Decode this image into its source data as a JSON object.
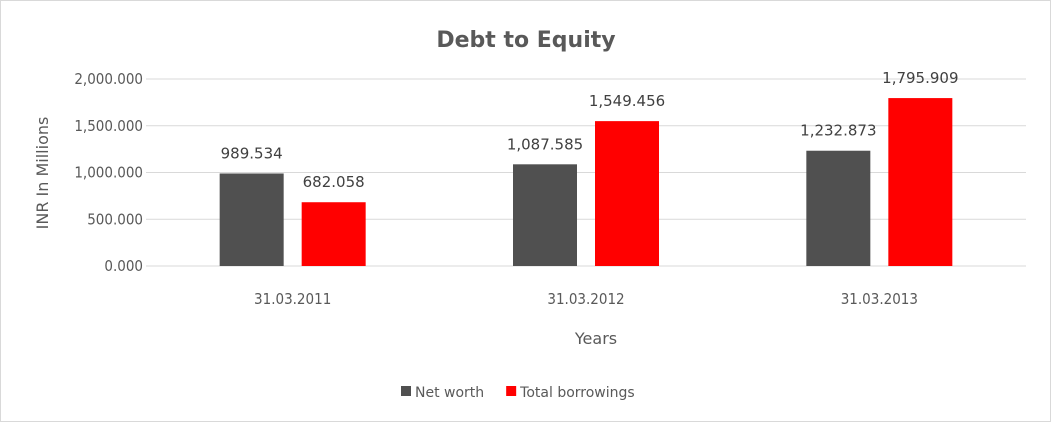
{
  "chart_data": {
    "type": "bar",
    "title": "Debt to Equity",
    "xlabel": "Years",
    "ylabel": "INR In Millions",
    "categories": [
      "31.03.2011",
      "31.03.2012",
      "31.03.2013"
    ],
    "series": [
      {
        "name": "Net worth",
        "color": "#505050",
        "values": [
          989.534,
          1087.585,
          1232.873
        ],
        "labels": [
          "989.534",
          "1,087.585",
          "1,232.873"
        ]
      },
      {
        "name": "Total borrowings",
        "color": "#FF0000",
        "values": [
          682.058,
          1549.456,
          1795.909
        ],
        "labels": [
          "682.058",
          "1,549.456",
          "1,795.909"
        ]
      }
    ],
    "ylim": [
      0,
      2000
    ],
    "yticks": [
      0,
      500,
      1000,
      1500,
      2000
    ],
    "ytick_labels": [
      "0.000",
      "500.000",
      "1,000.000",
      "1,500.000",
      "2,000.000"
    ],
    "grid": true,
    "legend": "bottom"
  }
}
